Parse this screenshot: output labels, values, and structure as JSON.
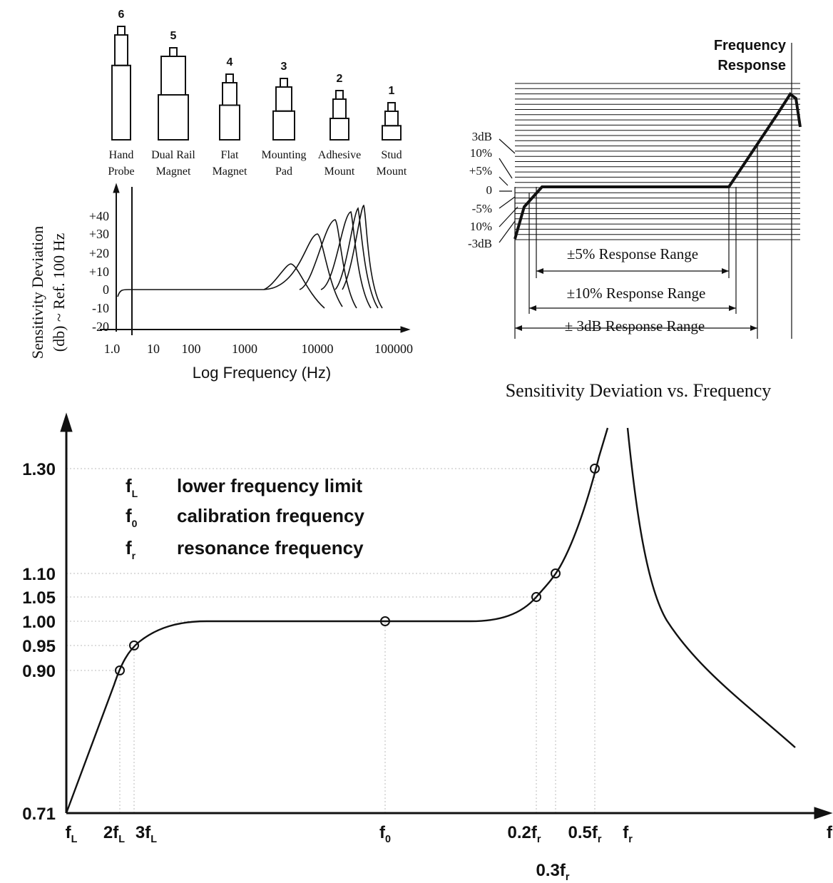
{
  "mounts": [
    {
      "number": "6",
      "line1": "Hand",
      "line2": "Probe"
    },
    {
      "number": "5",
      "line1": "Dual Rail",
      "line2": "Magnet"
    },
    {
      "number": "4",
      "line1": "Flat",
      "line2": "Magnet"
    },
    {
      "number": "3",
      "line1": "Mounting",
      "line2": "Pad"
    },
    {
      "number": "2",
      "line1": "Adhesive",
      "line2": "Mount"
    },
    {
      "number": "1",
      "line1": "Stud",
      "line2": "Mount"
    }
  ],
  "small_chart": {
    "y_label": [
      "Sensitivity Deviation",
      "(db) ~ Ref. 100 Hz"
    ],
    "yticks": [
      "+40",
      "+30",
      "+20",
      "+10",
      "0",
      "-10",
      "-20"
    ],
    "xticks": [
      "1.0",
      "10",
      "100",
      "1000",
      "10000",
      "100000"
    ],
    "x_label": "Log Frequency (Hz)"
  },
  "response_chart": {
    "title": [
      "Frequency",
      "Response"
    ],
    "levels": [
      "3dB",
      "10%",
      "+5%",
      "0",
      "-5%",
      "10%",
      "-3dB"
    ],
    "ranges": [
      "±5% Response Range",
      "±10% Response Range",
      "± 3dB Response Range"
    ],
    "caption": "Sensitivity Deviation vs. Frequency"
  },
  "main_chart": {
    "yticks": [
      "1.30",
      "1.10",
      "1.05",
      "1.00",
      "0.95",
      "0.90",
      "0.71"
    ],
    "legend": [
      {
        "symbol": "f",
        "sub": "L",
        "text": "lower frequency limit"
      },
      {
        "symbol": "f",
        "sub": "0",
        "text": "calibration frequency"
      },
      {
        "symbol": "f",
        "sub": "r",
        "text": "resonance frequency"
      }
    ],
    "xlabels": [
      {
        "main": "f",
        "sub": "L"
      },
      {
        "main": "2f",
        "sub": "L"
      },
      {
        "main": "3f",
        "sub": "L"
      },
      {
        "main": "f",
        "sub": "0"
      },
      {
        "main": "0.2f",
        "sub": "r"
      },
      {
        "main": "0.5f",
        "sub": "r"
      },
      {
        "main": "f",
        "sub": "r"
      },
      {
        "main": "0.3f",
        "sub": "r"
      },
      {
        "main": "f",
        "sub": ""
      }
    ]
  }
}
